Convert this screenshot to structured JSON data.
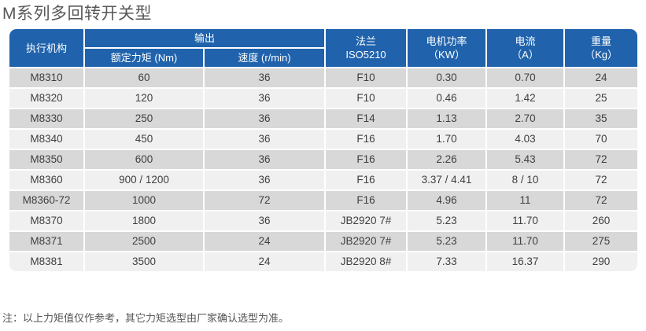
{
  "page": {
    "title": "M系列多回转开关型",
    "note": "注：以上力矩值仅作参考，其它力矩选型由厂家确认选型为准。"
  },
  "colors": {
    "header_bg": "#2063ac",
    "header_text": "#ffffff",
    "row_dark": "#d8d8d8",
    "row_light": "#f0f0f0",
    "body_text": "#3f3f3f"
  },
  "table": {
    "header": {
      "actuator": "执行机构",
      "output_group": "输出",
      "torque": "额定力矩 (Nm)",
      "speed": "速度 (r/min)",
      "flange": [
        "法兰",
        "ISO5210"
      ],
      "power": [
        "电机功率",
        "（KW）"
      ],
      "current": [
        "电流",
        "（A）"
      ],
      "weight": [
        "重量",
        "（Kg）"
      ]
    },
    "columns": [
      "执行机构",
      "额定力矩 (Nm)",
      "速度 (r/min)",
      "法兰 ISO5210",
      "电机功率（KW）",
      "电流（A）",
      "重量（Kg）"
    ],
    "rows": [
      [
        "M8310",
        "60",
        "36",
        "F10",
        "0.30",
        "0.70",
        "24"
      ],
      [
        "M8320",
        "120",
        "36",
        "F10",
        "0.46",
        "1.42",
        "25"
      ],
      [
        "M8330",
        "250",
        "36",
        "F14",
        "1.13",
        "2.70",
        "35"
      ],
      [
        "M8340",
        "450",
        "36",
        "F16",
        "1.70",
        "4.03",
        "70"
      ],
      [
        "M8350",
        "600",
        "36",
        "F16",
        "2.26",
        "5.43",
        "72"
      ],
      [
        "M8360",
        "900 / 1200",
        "36",
        "F16",
        "3.37 / 4.41",
        "8 / 10",
        "72"
      ],
      [
        "M8360-72",
        "1000",
        "72",
        "F16",
        "4.96",
        "11",
        "72"
      ],
      [
        "M8370",
        "1800",
        "36",
        "JB2920 7#",
        "5.23",
        "11.70",
        "260"
      ],
      [
        "M8371",
        "2500",
        "24",
        "JB2920 7#",
        "5.23",
        "11.70",
        "275"
      ],
      [
        "M8381",
        "3500",
        "24",
        "JB2920 8#",
        "7.33",
        "16.37",
        "290"
      ]
    ]
  }
}
